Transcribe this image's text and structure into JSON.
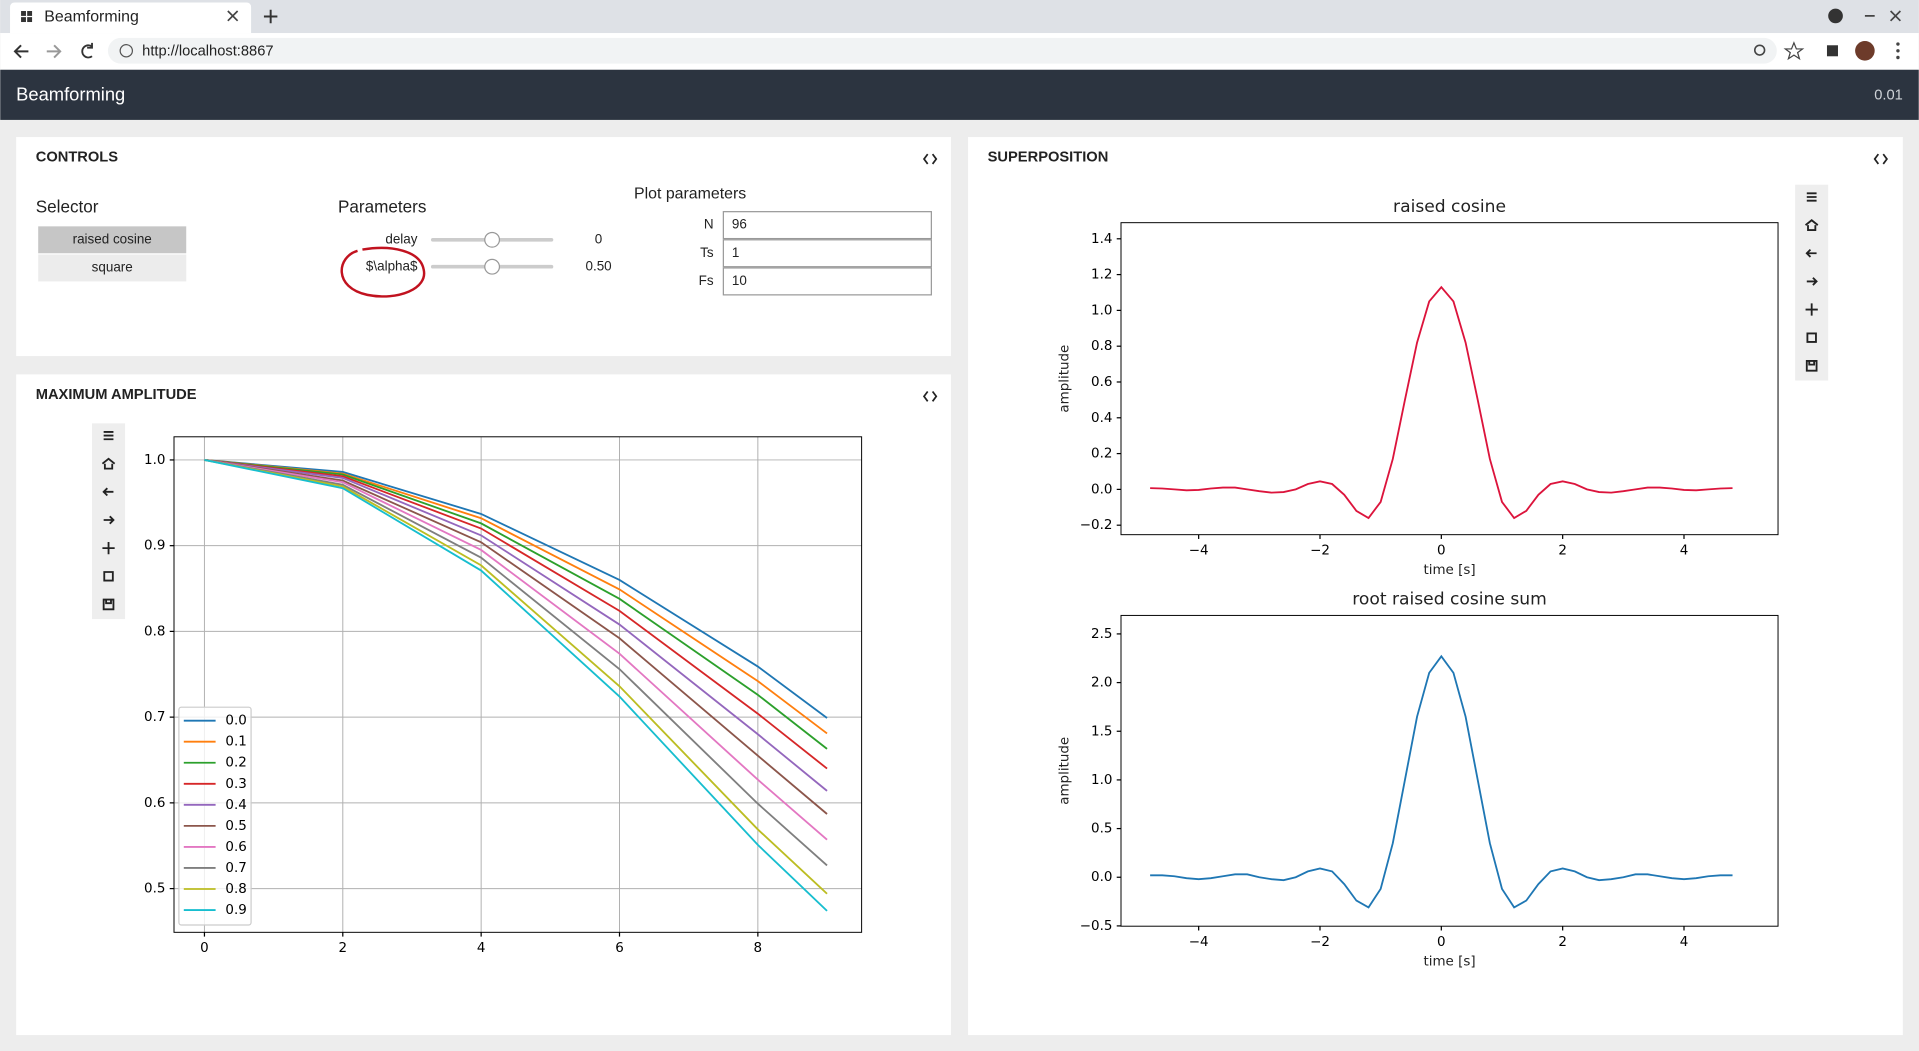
{
  "browser": {
    "tab_title": "Beamforming",
    "url": "http://localhost:8867"
  },
  "app": {
    "title": "Beamforming",
    "version": "0.01"
  },
  "controls": {
    "title": "CONTROLS",
    "selector": {
      "label": "Selector",
      "options": [
        "raised cosine",
        "square"
      ]
    },
    "parameters": {
      "label": "Parameters",
      "sliders": [
        {
          "name": "delay",
          "value": "0"
        },
        {
          "name": "$\\alpha$",
          "value": "0.50"
        }
      ]
    },
    "plot_parameters": {
      "label": "Plot parameters",
      "fields": [
        {
          "name": "N",
          "value": "96"
        },
        {
          "name": "Ts",
          "value": "1"
        },
        {
          "name": "Fs",
          "value": "10"
        }
      ]
    }
  },
  "panels": {
    "max_amplitude": "MAXIMUM AMPLITUDE",
    "superposition": "SUPERPOSITION"
  },
  "chart_data": [
    {
      "type": "line",
      "x": [
        0,
        2,
        4,
        6,
        8,
        9
      ],
      "xlim": [
        -0.44,
        9.5
      ],
      "ylim": [
        0.449,
        1.027
      ],
      "xticks": [
        0,
        2,
        4,
        6,
        8
      ],
      "yticks": [
        0.5,
        0.6,
        0.7,
        0.8,
        0.9,
        {
          "value": 1,
          "label": "1.0"
        }
      ],
      "grid": true,
      "legend": "lower left",
      "series": [
        {
          "name": "0.0",
          "color": "#1f77b4",
          "values": [
            1,
            0.986,
            0.937,
            0.86,
            0.759,
            0.699
          ]
        },
        {
          "name": "0.1",
          "color": "#ff7f0e",
          "values": [
            1,
            0.984,
            0.932,
            0.849,
            0.742,
            0.681
          ]
        },
        {
          "name": "0.2",
          "color": "#2ca02c",
          "values": [
            1,
            0.983,
            0.926,
            0.838,
            0.726,
            0.663
          ]
        },
        {
          "name": "0.3",
          "color": "#d62728",
          "values": [
            1,
            0.981,
            0.92,
            0.824,
            0.704,
            0.64
          ]
        },
        {
          "name": "0.4",
          "color": "#9467bd",
          "values": [
            1,
            0.979,
            0.912,
            0.808,
            0.68,
            0.614
          ]
        },
        {
          "name": "0.5",
          "color": "#8c564b",
          "values": [
            1,
            0.976,
            0.904,
            0.792,
            0.655,
            0.587
          ]
        },
        {
          "name": "0.6",
          "color": "#e377c2",
          "values": [
            1,
            0.974,
            0.895,
            0.774,
            0.627,
            0.557
          ]
        },
        {
          "name": "0.7",
          "color": "#7f7f7f",
          "values": [
            1,
            0.971,
            0.886,
            0.756,
            0.599,
            0.527
          ]
        },
        {
          "name": "0.8",
          "color": "#bcbd22",
          "values": [
            1,
            0.969,
            0.877,
            0.736,
            0.569,
            0.494
          ]
        },
        {
          "name": "0.9",
          "color": "#17becf",
          "values": [
            1,
            0.967,
            0.871,
            0.724,
            0.551,
            0.474
          ]
        }
      ]
    },
    {
      "type": "line",
      "title": "raised cosine",
      "xlabel": "time [s]",
      "ylabel": "amplitude",
      "color": "#dc143c",
      "x": [
        -4.8,
        -4.6,
        -4.4,
        -4.2,
        -4.0,
        -3.8,
        -3.6,
        -3.4,
        -3.2,
        -3.0,
        -2.8,
        -2.6,
        -2.4,
        -2.2,
        -2.0,
        -1.8,
        -1.6,
        -1.4,
        -1.2,
        -1.0,
        -0.8,
        -0.6,
        -0.4,
        -0.2,
        0,
        0.2,
        0.4,
        0.6,
        0.8,
        1.0,
        1.2,
        1.4,
        1.6,
        1.8,
        2.0,
        2.2,
        2.4,
        2.6,
        2.8,
        3.0,
        3.2,
        3.4,
        3.6,
        3.8,
        4.0,
        4.2,
        4.4,
        4.6,
        4.8
      ],
      "values": [
        0.007,
        0.005,
        0,
        -0.005,
        -0.003,
        0.005,
        0.01,
        0.01,
        0,
        -0.01,
        -0.018,
        -0.015,
        0,
        0.03,
        0.045,
        0.03,
        -0.03,
        -0.12,
        -0.16,
        -0.07,
        0.17,
        0.5,
        0.82,
        1.05,
        1.13,
        1.05,
        0.82,
        0.5,
        0.17,
        -0.07,
        -0.16,
        -0.12,
        -0.03,
        0.03,
        0.045,
        0.03,
        0,
        -0.015,
        -0.018,
        -0.01,
        0,
        0.01,
        0.01,
        0.005,
        -0.003,
        -0.005,
        0,
        0.005,
        0.007
      ],
      "xlim": [
        -5.28,
        5.55
      ],
      "ylim": [
        -0.253,
        1.49
      ],
      "xticks": [
        {
          "value": -4,
          "label": "−4"
        },
        {
          "value": -2,
          "label": "−2"
        },
        0,
        2,
        4
      ],
      "yticks": [
        {
          "value": -0.2,
          "label": "−0.2"
        },
        {
          "value": 0,
          "label": "0.0"
        },
        0.2,
        0.4,
        0.6,
        0.8,
        {
          "value": 1,
          "label": "1.0"
        },
        1.2,
        1.4
      ],
      "grid": false
    },
    {
      "type": "line",
      "title": "root raised cosine sum",
      "xlabel": "time [s]",
      "ylabel": "amplitude",
      "color": "#1f77b4",
      "x": [
        -4.8,
        -4.6,
        -4.4,
        -4.2,
        -4.0,
        -3.8,
        -3.6,
        -3.4,
        -3.2,
        -3.0,
        -2.8,
        -2.6,
        -2.4,
        -2.2,
        -2.0,
        -1.8,
        -1.6,
        -1.4,
        -1.2,
        -1.0,
        -0.8,
        -0.6,
        -0.4,
        -0.2,
        0,
        0.2,
        0.4,
        0.6,
        0.8,
        1.0,
        1.2,
        1.4,
        1.6,
        1.8,
        2.0,
        2.2,
        2.4,
        2.6,
        2.8,
        3.0,
        3.2,
        3.4,
        3.6,
        3.8,
        4.0,
        4.2,
        4.4,
        4.6,
        4.8
      ],
      "values": [
        0.02,
        0.02,
        0.01,
        -0.01,
        -0.02,
        -0.01,
        0.01,
        0.03,
        0.03,
        0,
        -0.02,
        -0.03,
        0,
        0.06,
        0.09,
        0.06,
        -0.07,
        -0.24,
        -0.31,
        -0.12,
        0.35,
        1.0,
        1.65,
        2.1,
        2.27,
        2.1,
        1.65,
        1.0,
        0.35,
        -0.12,
        -0.31,
        -0.24,
        -0.07,
        0.06,
        0.09,
        0.06,
        0,
        -0.03,
        -0.02,
        0,
        0.03,
        0.03,
        0.01,
        -0.01,
        -0.02,
        -0.01,
        0.01,
        0.02,
        0.02
      ],
      "xlim": [
        -5.28,
        5.55
      ],
      "ylim": [
        -0.503,
        2.69
      ],
      "xticks": [
        {
          "value": -4,
          "label": "−4"
        },
        {
          "value": -2,
          "label": "−2"
        },
        0,
        2,
        4
      ],
      "yticks": [
        {
          "value": -0.5,
          "label": "−0.5"
        },
        {
          "value": 0,
          "label": "0.0"
        },
        0.5,
        {
          "value": 1,
          "label": "1.0"
        },
        1.5,
        {
          "value": 2,
          "label": "2.0"
        },
        2.5
      ],
      "grid": false
    }
  ]
}
